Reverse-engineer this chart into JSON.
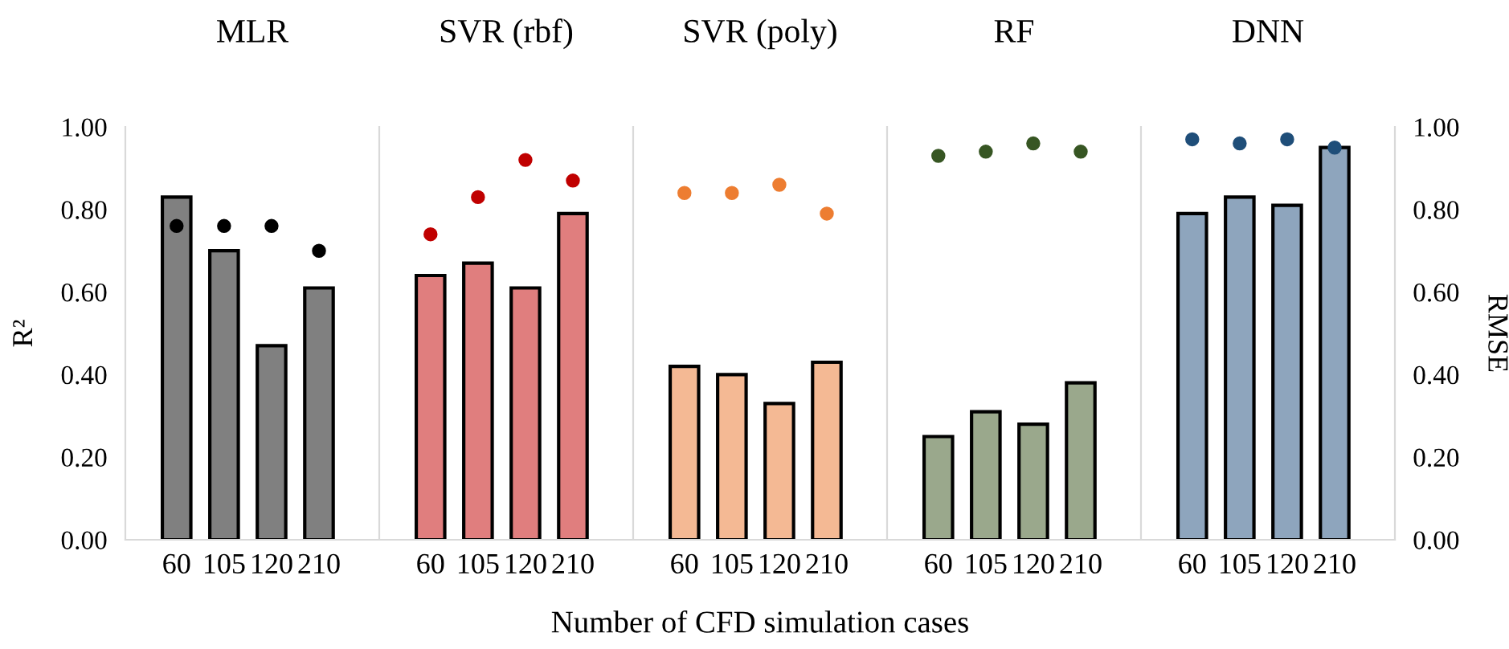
{
  "chart_data": [
    {
      "type": "bar",
      "title": "MLR",
      "categories": [
        "60",
        "105",
        "120",
        "210"
      ],
      "ylabel": "R²",
      "ylim": [
        0,
        1
      ],
      "yticks": [
        {
          "value": 0,
          "label": "0.00"
        },
        {
          "value": 0.2,
          "label": "0.20"
        },
        {
          "value": 0.4,
          "label": "0.40"
        },
        {
          "value": 0.6,
          "label": "0.60"
        },
        {
          "value": 0.8,
          "label": "0.80"
        },
        {
          "value": 1,
          "label": "1.00"
        }
      ],
      "series": [
        {
          "color": "#808080",
          "values": [
            0.83,
            0.7,
            0.47,
            0.61
          ]
        },
        {
          "type": "scatter",
          "color": "#000000",
          "values": [
            0.76,
            0.76,
            0.76,
            0.7
          ]
        }
      ]
    },
    {
      "type": "bar",
      "title": "SVR (rbf)",
      "categories": [
        "60",
        "105",
        "120",
        "210"
      ],
      "ylim": [
        0,
        1
      ],
      "tick_labels": "x",
      "series": [
        {
          "color": "#e07e7e",
          "values": [
            0.64,
            0.67,
            0.61,
            0.79
          ]
        },
        {
          "type": "scatter",
          "color": "#c00000",
          "values": [
            0.74,
            0.83,
            0.92,
            0.87
          ]
        }
      ]
    },
    {
      "type": "bar",
      "title": "SVR (poly)",
      "categories": [
        "60",
        "105",
        "120",
        "210"
      ],
      "xlabel": "Number of CFD simulation cases",
      "ylim": [
        0,
        1
      ],
      "tick_labels": "x",
      "series": [
        {
          "color": "#f4b994",
          "values": [
            0.42,
            0.4,
            0.33,
            0.43
          ]
        },
        {
          "type": "scatter",
          "color": "#ed7d31",
          "values": [
            0.84,
            0.84,
            0.86,
            0.79
          ]
        }
      ]
    },
    {
      "type": "bar",
      "title": "RF",
      "categories": [
        "60",
        "105",
        "120",
        "210"
      ],
      "ylim": [
        0,
        1
      ],
      "tick_labels": "x",
      "series": [
        {
          "color": "#9aa88c",
          "values": [
            0.25,
            0.31,
            0.28,
            0.38
          ]
        },
        {
          "type": "scatter",
          "color": "#375623",
          "values": [
            0.93,
            0.94,
            0.96,
            0.94
          ]
        }
      ]
    },
    {
      "type": "bar",
      "title": "DNN",
      "categories": [
        "60",
        "105",
        "120",
        "210"
      ],
      "y2label": "RMSE",
      "ylim": [
        0,
        1
      ],
      "y2lim": [
        0,
        1
      ],
      "y2ticks": [
        {
          "value": 0,
          "label": "0.00"
        },
        {
          "value": 0.2,
          "label": "0.20"
        },
        {
          "value": 0.4,
          "label": "0.40"
        },
        {
          "value": 0.6,
          "label": "0.60"
        },
        {
          "value": 0.8,
          "label": "0.80"
        },
        {
          "value": 1,
          "label": "1.00"
        }
      ],
      "tick_labels": "xy2",
      "series": [
        {
          "color": "#8ea5bd",
          "values": [
            0.79,
            0.83,
            0.81,
            0.95
          ]
        },
        {
          "type": "scatter",
          "color": "#1f4e79",
          "values": [
            0.97,
            0.96,
            0.97,
            0.95
          ]
        }
      ]
    }
  ]
}
